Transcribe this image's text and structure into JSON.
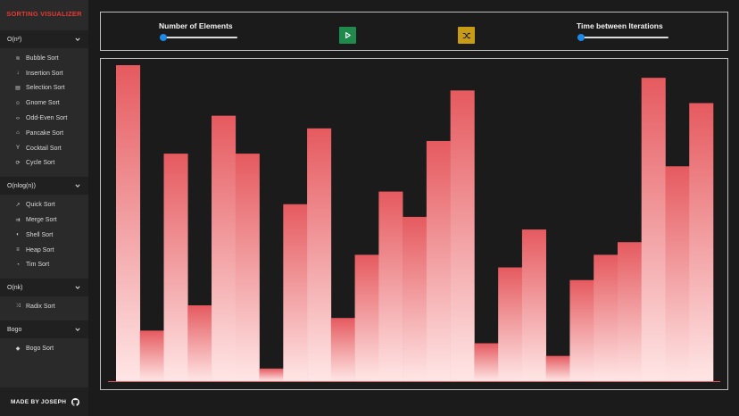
{
  "brand": "SORTING VISUALIZER",
  "colors": {
    "brand": "#e53935",
    "play": "#1f8a4c",
    "shuffle": "#c89b17",
    "slider": "#1e88e5",
    "bar_top": "#e55a5f",
    "bar_bottom": "#ffe6e6"
  },
  "sidebar": {
    "groups": [
      {
        "label": "O(n²)",
        "icon": "chevron-down-icon",
        "items": [
          {
            "label": "Bubble Sort",
            "icon": "bubble-icon",
            "glyph": "≋"
          },
          {
            "label": "Insertion Sort",
            "icon": "insert-icon",
            "glyph": "↓"
          },
          {
            "label": "Selection Sort",
            "icon": "selection-icon",
            "glyph": "▤"
          },
          {
            "label": "Gnome Sort",
            "icon": "gnome-icon",
            "glyph": "☺"
          },
          {
            "label": "Odd-Even Sort",
            "icon": "odd-even-icon",
            "glyph": "‹›"
          },
          {
            "label": "Pancake Sort",
            "icon": "pancake-icon",
            "glyph": "⌂"
          },
          {
            "label": "Cocktail Sort",
            "icon": "cocktail-icon",
            "glyph": "Y"
          },
          {
            "label": "Cycle Sort",
            "icon": "cycle-icon",
            "glyph": "⟳"
          }
        ]
      },
      {
        "label": "O(nlog(n))",
        "icon": "chevron-down-icon",
        "items": [
          {
            "label": "Quick Sort",
            "icon": "quick-icon",
            "glyph": "↗"
          },
          {
            "label": "Merge Sort",
            "icon": "merge-icon",
            "glyph": "⇉"
          },
          {
            "label": "Shell Sort",
            "icon": "shell-icon",
            "glyph": "◐"
          },
          {
            "label": "Heap Sort",
            "icon": "heap-icon",
            "glyph": "≡"
          },
          {
            "label": "Tim Sort",
            "icon": "tim-icon",
            "glyph": "◔"
          }
        ]
      },
      {
        "label": "O(nk)",
        "icon": "chevron-down-icon",
        "items": [
          {
            "label": "Radix Sort",
            "icon": "radix-icon",
            "glyph": "⤨"
          }
        ]
      },
      {
        "label": "Bogo",
        "icon": "chevron-down-icon",
        "items": [
          {
            "label": "Bogo Sort",
            "icon": "bogo-icon",
            "glyph": "◆"
          }
        ]
      }
    ]
  },
  "footer": {
    "label": "MADE BY JOSEPH",
    "icon": "github-icon"
  },
  "controls": {
    "elements_label": "Number of Elements",
    "elements_level": 0.04,
    "play_icon": "play-icon",
    "shuffle_icon": "shuffle-icon",
    "time_label": "Time between Iterations",
    "time_level": 0.0
  },
  "chart_data": {
    "type": "bar",
    "values": [
      100,
      16,
      72,
      24,
      84,
      72,
      4,
      56,
      80,
      20,
      40,
      60,
      52,
      76,
      92,
      12,
      36,
      48,
      8,
      32,
      40,
      44,
      96,
      68,
      88
    ],
    "ylim": [
      0,
      100
    ]
  }
}
